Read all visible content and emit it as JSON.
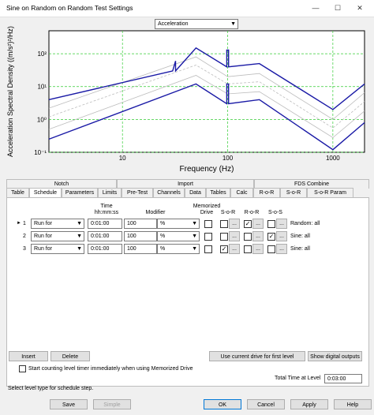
{
  "window": {
    "title": "Sine on Random on Random Test Settings",
    "minimize": "—",
    "maximize": "☐",
    "close": "✕"
  },
  "chart": {
    "dropdown_value": "Acceleration"
  },
  "chart_data": {
    "type": "line",
    "xlabel": "Frequency (Hz)",
    "ylabel": "Acceleration Spectral Density ((m/s²)²/Hz)",
    "x_scale": "log",
    "y_scale": "log",
    "xlim": [
      2,
      2000
    ],
    "ylim": [
      0.1,
      500
    ],
    "x_ticks": [
      "10",
      "100",
      "1000"
    ],
    "y_ticks": [
      "10⁻¹",
      "10⁰",
      "10¹",
      "10²"
    ],
    "grid": true,
    "series": [
      {
        "color": "#1a1aa6",
        "style": "solid",
        "x": [
          2,
          30,
          30,
          32,
          32,
          50,
          98,
          98,
          102,
          102,
          200,
          1000,
          2000
        ],
        "y": [
          4,
          30,
          30,
          60,
          30,
          150,
          40,
          130,
          130,
          40,
          50,
          2,
          12
        ]
      },
      {
        "color": "#1a1aa6",
        "style": "solid",
        "x": [
          2,
          50,
          98,
          98,
          102,
          102,
          200,
          1000,
          2000
        ],
        "y": [
          0.25,
          12,
          3,
          12,
          12,
          3,
          4,
          0.12,
          0.8
        ]
      },
      {
        "color": "#bdbdbd",
        "style": "solid",
        "x": [
          2,
          50,
          100,
          200,
          1000,
          2000
        ],
        "y": [
          2.2,
          80,
          20,
          25,
          1,
          6.5
        ]
      },
      {
        "color": "#bdbdbd",
        "style": "solid",
        "x": [
          2,
          50,
          100,
          200,
          1000,
          2000
        ],
        "y": [
          0.5,
          22,
          6,
          7,
          0.28,
          1.8
        ]
      },
      {
        "color": "#bdbdbd",
        "style": "dashed",
        "x": [
          2,
          50,
          100,
          200,
          1000,
          2000
        ],
        "y": [
          1.2,
          45,
          12,
          14,
          0.55,
          3.5
        ]
      }
    ]
  },
  "tabs_top": [
    {
      "label": "Notch"
    },
    {
      "label": "Import"
    },
    {
      "label": "FDS Combine"
    }
  ],
  "tabs": [
    {
      "label": "Table"
    },
    {
      "label": "Schedule"
    },
    {
      "label": "Parameters"
    },
    {
      "label": "Limits"
    },
    {
      "label": "Pre-Test"
    },
    {
      "label": "Channels"
    },
    {
      "label": "Data"
    },
    {
      "label": "Tables"
    },
    {
      "label": "Calc"
    },
    {
      "label": "R-o-R"
    },
    {
      "label": "S-o-R"
    },
    {
      "label": "S-o-R Param"
    }
  ],
  "headers": {
    "time": "Time",
    "time_format": "hh:mm:ss",
    "modifier": "Modifier",
    "memorized1": "Memorized",
    "memorized2": "Drive",
    "sor": "S-o-R",
    "ror": "R-o-R",
    "sos": "S-o-S"
  },
  "rows": [
    {
      "marker": "►",
      "num": "1",
      "action": "Run for",
      "time": "0:01:00",
      "value": "100",
      "unit": "%",
      "drive": false,
      "sor": false,
      "ror": true,
      "sos": false,
      "ellipsis": "...",
      "note": "Random: all"
    },
    {
      "marker": "",
      "num": "2",
      "action": "Run for",
      "time": "0:01:00",
      "value": "100",
      "unit": "%",
      "drive": false,
      "sor": false,
      "ror": false,
      "sos": true,
      "ellipsis": "...",
      "note": "Sine: all"
    },
    {
      "marker": "",
      "num": "3",
      "action": "Run for",
      "time": "0:01:00",
      "value": "100",
      "unit": "%",
      "drive": false,
      "sor": true,
      "ror": false,
      "sos": false,
      "ellipsis": "...",
      "note": "Sine: all"
    }
  ],
  "buttons": {
    "insert": "Insert",
    "delete": "Delete",
    "use_current_drive": "Use current drive for first level",
    "show_digital": "Show digital outputs",
    "save": "Save",
    "simple": "Simple",
    "ok": "OK",
    "cancel": "Cancel",
    "apply": "Apply",
    "help": "Help"
  },
  "checkbox_timer": {
    "label": "Start counting level timer immediately when using Memorized Drive",
    "checked": false
  },
  "total_time": {
    "label": "Total Time at Level",
    "value": "0:03:00"
  },
  "status": "Select level type for schedule step."
}
